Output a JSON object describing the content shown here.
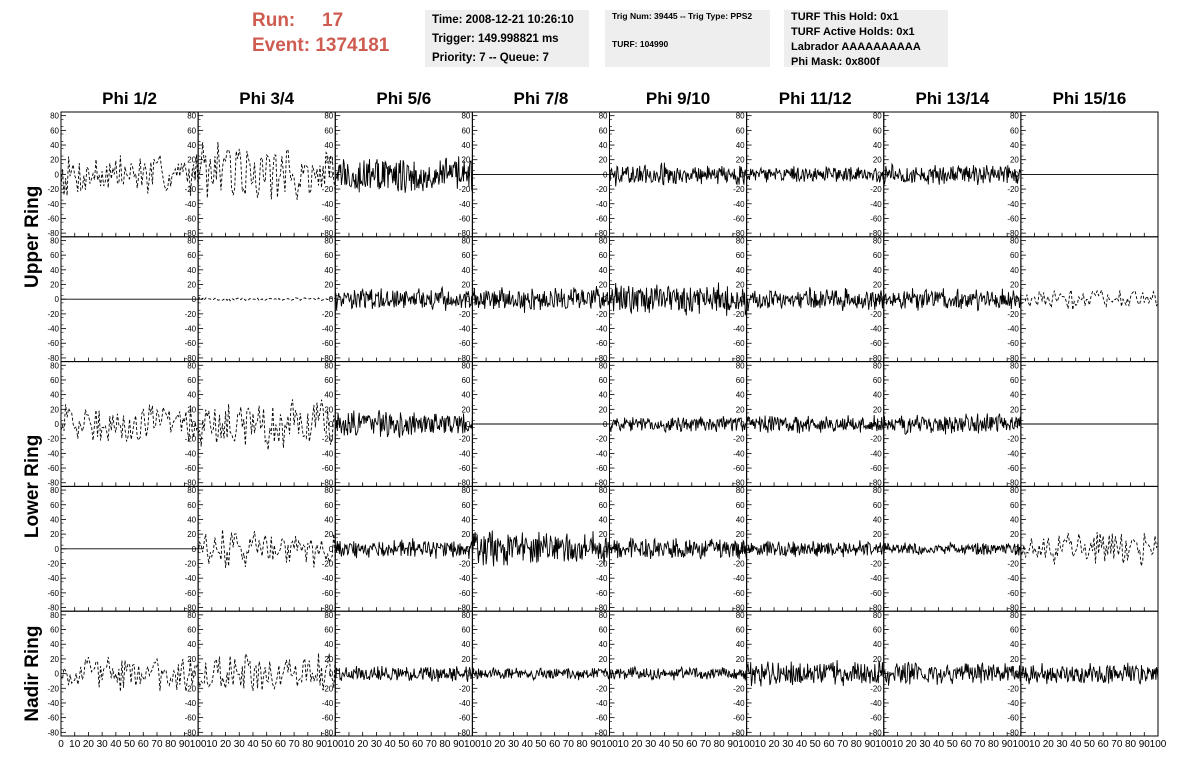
{
  "header": {
    "run_label": "Run:",
    "run_value": "17",
    "event_label": "Event:",
    "event_value": "1374181",
    "time": "Time: 2008-12-21 10:26:10",
    "trigger": "Trigger: 149.998821 ms",
    "priority": "Priority: 7 -- Queue: 7",
    "trig_num": "Trig Num: 39445 -- Trig Type: PPS2",
    "turf": "TURF: 104990",
    "turf_this_hold": "TURF This Hold: 0x1",
    "turf_active_holds": "TURF Active Holds: 0x1",
    "labrador": "Labrador AAAAAAAAAA",
    "phi_mask": "Phi Mask: 0x800f"
  },
  "colors": {
    "header_red": "#cf5c50",
    "info_bg": "#eeeeee",
    "trace": "#000000"
  },
  "chart_data": {
    "type": "line",
    "columns": [
      "Phi 1/2",
      "Phi 3/4",
      "Phi 5/6",
      "Phi 7/8",
      "Phi 9/10",
      "Phi 11/12",
      "Phi 13/14",
      "Phi 15/16"
    ],
    "row_labels": [
      "Upper Ring",
      "Lower Ring",
      "Nadir Ring"
    ],
    "xlim": [
      0,
      100
    ],
    "ylim": [
      -85,
      85
    ],
    "x_ticks": [
      0,
      10,
      20,
      30,
      40,
      50,
      60,
      70,
      80,
      90,
      100
    ],
    "y_ticks": [
      -80,
      -60,
      -40,
      -20,
      0,
      20,
      40,
      60,
      80
    ],
    "grid": false,
    "panels": [
      [
        {
          "style": "dashed",
          "amp": 28
        },
        {
          "style": "dashed",
          "amp": 40
        },
        {
          "style": "solid",
          "amp": 24
        },
        {
          "style": "flat",
          "amp": 0
        },
        {
          "style": "solid",
          "amp": 14
        },
        {
          "style": "solid",
          "amp": 10
        },
        {
          "style": "solid",
          "amp": 13
        },
        {
          "style": "flat",
          "amp": 0
        }
      ],
      [
        {
          "style": "flat",
          "amp": 0
        },
        {
          "style": "dashed",
          "amp": 2
        },
        {
          "style": "solid",
          "amp": 14
        },
        {
          "style": "solid",
          "amp": 16
        },
        {
          "style": "solid",
          "amp": 20
        },
        {
          "style": "solid",
          "amp": 14
        },
        {
          "style": "solid",
          "amp": 14
        },
        {
          "style": "dashed",
          "amp": 14
        }
      ],
      [
        {
          "style": "dashed",
          "amp": 26
        },
        {
          "style": "dashed",
          "amp": 32
        },
        {
          "style": "solid",
          "amp": 16
        },
        {
          "style": "flat",
          "amp": 0
        },
        {
          "style": "solid",
          "amp": 10
        },
        {
          "style": "solid",
          "amp": 12
        },
        {
          "style": "solid",
          "amp": 13
        },
        {
          "style": "flat",
          "amp": 0
        }
      ],
      [
        {
          "style": "flat",
          "amp": 0
        },
        {
          "style": "dashed",
          "amp": 24
        },
        {
          "style": "solid",
          "amp": 12
        },
        {
          "style": "solid",
          "amp": 22
        },
        {
          "style": "solid",
          "amp": 14
        },
        {
          "style": "solid",
          "amp": 10
        },
        {
          "style": "solid",
          "amp": 8
        },
        {
          "style": "dashed",
          "amp": 20
        }
      ],
      [
        {
          "style": "dashed",
          "amp": 22
        },
        {
          "style": "dashed",
          "amp": 26
        },
        {
          "style": "solid",
          "amp": 10
        },
        {
          "style": "solid",
          "amp": 8
        },
        {
          "style": "solid",
          "amp": 8
        },
        {
          "style": "solid",
          "amp": 16
        },
        {
          "style": "solid",
          "amp": 14
        },
        {
          "style": "solid",
          "amp": 14
        }
      ]
    ]
  }
}
